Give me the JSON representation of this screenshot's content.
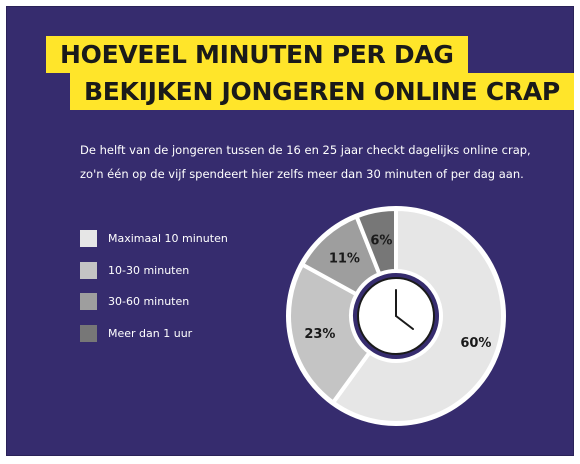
{
  "title": {
    "line1": "HOEVEEL MINUTEN PER DAG",
    "line2": "BEKIJKEN JONGEREN ONLINE CRAP"
  },
  "subtitle": {
    "line1": "De helft van de jongeren tussen de 16 en 25 jaar checkt dagelijks online crap,",
    "line2": "zo'n één op de vijf spendeert hier zelfs meer dan 30 minuten of per dag aan."
  },
  "colors": {
    "background": "#362c6e",
    "accent": "#ffe52a",
    "text": "#ffffff"
  },
  "center_icon": "clock-icon",
  "chart_data": {
    "type": "pie",
    "style": "donut",
    "legend_position": "left",
    "series": [
      {
        "name": "Maximaal 10 minuten",
        "value": 60,
        "label": "60%",
        "color": "#e6e6e6"
      },
      {
        "name": "10-30 minuten",
        "value": 23,
        "label": "23%",
        "color": "#c4c4c4"
      },
      {
        "name": "30-60 minuten",
        "value": 11,
        "label": "11%",
        "color": "#9e9e9e"
      },
      {
        "name": "Meer dan 1 uur",
        "value": 6,
        "label": "6%",
        "color": "#777777"
      }
    ]
  }
}
